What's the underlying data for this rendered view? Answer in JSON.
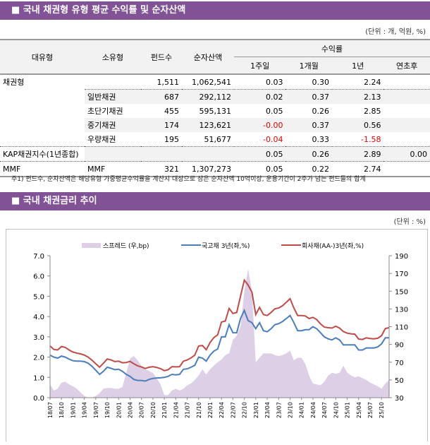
{
  "section1": {
    "title": "■ 국내 채권형 유형 평균 수익률 및 순자산액",
    "unit": "(단위 : 개, 억원, %)"
  },
  "table": {
    "headers": {
      "major": "대유형",
      "minor": "소유형",
      "funds": "펀드수",
      "assets": "순자산액",
      "returns": "수익률",
      "w1": "1주일",
      "m1": "1개월",
      "y1": "1년",
      "ytd": "연초후"
    },
    "rows": [
      {
        "major": "채권형",
        "minor": "",
        "funds": "1,511",
        "assets": "1,062,541",
        "w1": "0.03",
        "m1": "0.30",
        "y1": "2.24",
        "ytd": ""
      },
      {
        "major": "",
        "minor": "일반채권",
        "funds": "687",
        "assets": "292,112",
        "w1": "0.02",
        "m1": "0.37",
        "y1": "2.13",
        "ytd": ""
      },
      {
        "major": "",
        "minor": "초단기채권",
        "funds": "455",
        "assets": "595,131",
        "w1": "0.05",
        "m1": "0.26",
        "y1": "2.85",
        "ytd": ""
      },
      {
        "major": "",
        "minor": "중기채권",
        "funds": "174",
        "assets": "123,621",
        "w1": "-0.00",
        "m1": "0.37",
        "y1": "0.56",
        "ytd": ""
      },
      {
        "major": "",
        "minor": "우량채권",
        "funds": "195",
        "assets": "51,677",
        "w1": "-0.04",
        "m1": "0.33",
        "y1": "-1.58",
        "ytd": ""
      },
      {
        "major": "KAP채권지수(1년종합)",
        "minor": "",
        "funds": "",
        "assets": "",
        "w1": "0.05",
        "m1": "0.26",
        "y1": "2.89",
        "ytd": "0.00"
      },
      {
        "major": "MMF",
        "minor": "MMF",
        "funds": "321",
        "assets": "1,307,273",
        "w1": "0.05",
        "m1": "0.22",
        "y1": "2.74",
        "ytd": ""
      }
    ],
    "note": "주1) 펀드수, 순자산액은 해당유형 가중평균수익률을 계산시 대상으로 삼은 순자산액 10억이상, 운용기간이 2주가 넘는 펀드들의 합계"
  },
  "section2": {
    "title": "■ 국내 채권금리 추이",
    "unit": "(단위 : %)"
  },
  "colors": {
    "header": "#825296",
    "gov": "#4a7ebb",
    "corp": "#be4b48",
    "spread": "#ddd0e6",
    "negative": "#e00000"
  },
  "chart_data": {
    "type": "line+area",
    "legend_position": "top",
    "grid": false,
    "left_axis": {
      "ylim": [
        0,
        7
      ],
      "ticks": [
        "0.0",
        "1.0",
        "2.0",
        "3.0",
        "4.0",
        "5.0",
        "6.0",
        "7.0"
      ]
    },
    "right_axis": {
      "ylim": [
        30,
        190
      ],
      "ticks": [
        "30",
        "50",
        "70",
        "90",
        "110",
        "130",
        "150",
        "170",
        "190"
      ]
    },
    "x_ticks": [
      "18/07",
      "18/10",
      "19/01",
      "19/04",
      "19/07",
      "19/10",
      "20/01",
      "20/04",
      "20/07",
      "20/10",
      "21/01",
      "21/04",
      "21/07",
      "21/10",
      "22/01",
      "22/04",
      "22/07",
      "22/10",
      "23/01",
      "23/04",
      "23/07",
      "23/10",
      "24/01",
      "24/04",
      "24/07",
      "24/10",
      "25/01",
      "25/04",
      "25/07",
      "25/10"
    ],
    "x": [
      "18/07",
      "18/08",
      "18/09",
      "18/10",
      "18/11",
      "18/12",
      "19/01",
      "19/02",
      "19/03",
      "19/04",
      "19/05",
      "19/06",
      "19/07",
      "19/08",
      "19/09",
      "19/10",
      "19/11",
      "19/12",
      "20/01",
      "20/02",
      "20/03",
      "20/04",
      "20/05",
      "20/06",
      "20/07",
      "20/08",
      "20/09",
      "20/10",
      "20/11",
      "20/12",
      "21/01",
      "21/02",
      "21/03",
      "21/04",
      "21/05",
      "21/06",
      "21/07",
      "21/08",
      "21/09",
      "21/10",
      "21/11",
      "21/12",
      "22/01",
      "22/02",
      "22/03",
      "22/04",
      "22/05",
      "22/06",
      "22/07",
      "22/08",
      "22/09",
      "22/10",
      "22/11",
      "22/12",
      "23/01",
      "23/02",
      "23/03",
      "23/04",
      "23/05",
      "23/06",
      "23/07",
      "23/08",
      "23/09",
      "23/10",
      "23/11",
      "23/12",
      "24/01",
      "24/02",
      "24/03",
      "24/04",
      "24/05",
      "24/06",
      "24/07",
      "24/08",
      "24/09",
      "24/10",
      "24/11",
      "24/12",
      "25/01",
      "25/02",
      "25/03",
      "25/04",
      "25/05",
      "25/06",
      "25/07",
      "25/08",
      "25/09",
      "25/10",
      "25/11",
      "25/12"
    ],
    "series": [
      {
        "name": "스프레드 (우,bp)",
        "axis": "right",
        "kind": "area",
        "values": [
          45,
          38,
          40,
          47,
          48,
          45,
          43,
          40,
          36,
          32,
          30,
          30,
          32,
          35,
          40,
          41,
          41,
          40,
          40,
          42,
          58,
          74,
          77,
          72,
          66,
          62,
          60,
          58,
          52,
          45,
          33,
          33,
          38,
          40,
          38,
          40,
          44,
          46,
          50,
          55,
          62,
          56,
          62,
          66,
          70,
          73,
          78,
          80,
          95,
          100,
          110,
          150,
          175,
          150,
          70,
          75,
          80,
          80,
          80,
          78,
          77,
          78,
          80,
          83,
          72,
          75,
          75,
          68,
          55,
          46,
          45,
          44,
          48,
          55,
          58,
          57,
          58,
          66,
          58,
          55,
          53,
          54,
          52,
          50,
          47,
          45,
          43,
          40,
          46,
          50
        ]
      },
      {
        "name": "국고채 3년(좌,%)",
        "axis": "left",
        "kind": "line",
        "values": [
          2.1,
          2.0,
          1.95,
          2.05,
          2.0,
          1.9,
          1.82,
          1.8,
          1.8,
          1.78,
          1.7,
          1.55,
          1.35,
          1.15,
          1.3,
          1.5,
          1.45,
          1.38,
          1.4,
          1.3,
          1.15,
          1.05,
          0.9,
          0.85,
          0.85,
          0.82,
          0.9,
          0.95,
          0.97,
          0.98,
          1.0,
          1.05,
          1.15,
          1.12,
          1.15,
          1.4,
          1.42,
          1.5,
          1.6,
          2.0,
          1.95,
          1.8,
          2.1,
          2.3,
          2.4,
          3.0,
          3.0,
          3.6,
          3.2,
          3.2,
          3.9,
          4.3,
          3.8,
          3.7,
          3.4,
          3.7,
          3.3,
          3.25,
          3.4,
          3.6,
          3.65,
          3.75,
          3.9,
          4.05,
          3.7,
          3.3,
          3.3,
          3.35,
          3.35,
          3.5,
          3.4,
          3.2,
          3.0,
          2.9,
          2.85,
          2.95,
          2.85,
          2.6,
          2.6,
          2.6,
          2.6,
          2.35,
          2.35,
          2.45,
          2.45,
          2.45,
          2.5,
          2.65,
          2.95,
          2.95
        ]
      },
      {
        "name": "회사채(AA-)3년(좌,%)",
        "axis": "left",
        "kind": "line",
        "values": [
          2.55,
          2.38,
          2.35,
          2.52,
          2.48,
          2.35,
          2.25,
          2.2,
          2.16,
          2.1,
          2.0,
          1.85,
          1.67,
          1.5,
          1.7,
          1.91,
          1.86,
          1.78,
          1.8,
          1.72,
          1.73,
          1.79,
          1.67,
          1.57,
          1.51,
          1.44,
          1.5,
          1.53,
          1.49,
          1.43,
          1.33,
          1.38,
          1.53,
          1.52,
          1.53,
          1.8,
          1.86,
          1.96,
          2.1,
          2.55,
          2.57,
          2.36,
          2.72,
          2.96,
          3.1,
          3.73,
          3.78,
          4.4,
          4.15,
          4.2,
          5.0,
          5.8,
          5.55,
          5.2,
          4.1,
          4.45,
          4.1,
          4.05,
          4.2,
          4.38,
          4.42,
          4.53,
          4.7,
          4.88,
          4.42,
          4.05,
          4.05,
          4.03,
          3.9,
          3.96,
          3.85,
          3.64,
          3.48,
          3.45,
          3.43,
          3.52,
          3.43,
          3.26,
          3.18,
          3.15,
          3.13,
          2.89,
          2.87,
          2.95,
          2.92,
          2.9,
          2.93,
          3.05,
          3.41,
          3.45
        ]
      }
    ]
  }
}
